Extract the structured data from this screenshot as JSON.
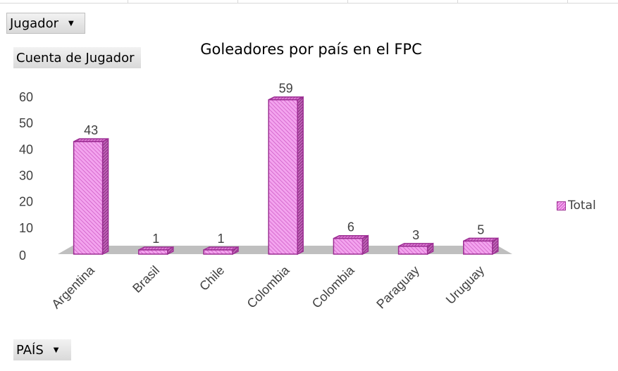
{
  "filters": {
    "jugador": {
      "label": "Jugador",
      "arrow": "▼"
    },
    "value_field": {
      "label": "Cuenta de Jugador"
    },
    "pais": {
      "label": "PAÍS",
      "arrow": "▼"
    }
  },
  "colors": {
    "bar_face": "#f3a4ee",
    "bar_stroke": "#9c2e93",
    "floor": "#bfbfbf"
  },
  "chart_data": {
    "type": "bar",
    "title": "Goleadores por país en el FPC",
    "categories": [
      "Argentina",
      "Brasil",
      "Chile",
      "Colombia",
      "Colombia",
      "Paraguay",
      "Uruguay"
    ],
    "series": [
      {
        "name": "Total",
        "values": [
          43,
          1,
          1,
          59,
          6,
          3,
          5
        ]
      }
    ],
    "ylim": [
      0,
      60
    ],
    "yticks": [
      "0",
      "10",
      "20",
      "30",
      "40",
      "50",
      "60"
    ],
    "legend_position": "right",
    "grid": false,
    "style": "3d-column"
  }
}
